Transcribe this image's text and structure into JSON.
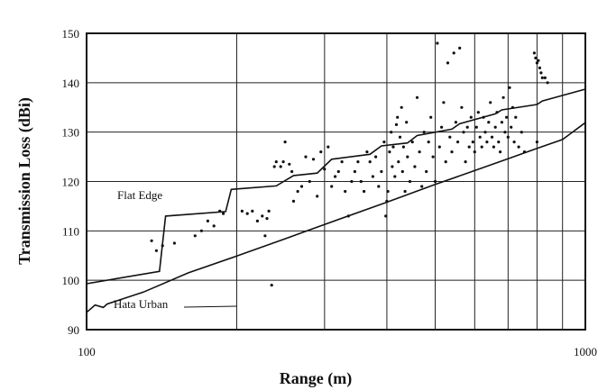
{
  "chart_data": {
    "type": "scatter",
    "title": "",
    "xlabel": "Range (m)",
    "ylabel": "Transmission Loss (dBi)",
    "x_scale": "log",
    "xlim": [
      100,
      1000
    ],
    "ylim": [
      90,
      150
    ],
    "x_ticks": [
      100,
      1000
    ],
    "y_ticks": [
      90,
      100,
      110,
      120,
      130,
      140,
      150
    ],
    "grid": true,
    "annotations": [
      {
        "text": "Flat Edge",
        "series": "flat_edge"
      },
      {
        "text": "Hata Urban",
        "series": "hata_urban"
      }
    ],
    "series": [
      {
        "id": "flat_edge",
        "kind": "line",
        "x": [
          100,
          140,
          144,
          190,
          195,
          240,
          260,
          290,
          310,
          370,
          390,
          440,
          460,
          540,
          560,
          660,
          680,
          800,
          820,
          1000
        ],
        "y": [
          99.3,
          101.8,
          113,
          113.9,
          118.4,
          119.1,
          121.2,
          121.7,
          124.5,
          125.5,
          127.2,
          127.8,
          129.3,
          130.6,
          131.7,
          133.7,
          134.5,
          135.6,
          136.3,
          138.7
        ]
      },
      {
        "id": "hata_urban",
        "kind": "line",
        "x": [
          100,
          104,
          108,
          110,
          130,
          160,
          200,
          250,
          300,
          400,
          500,
          600,
          700,
          800,
          900,
          1000
        ],
        "y": [
          93.5,
          95,
          94.5,
          95.2,
          97.6,
          101.5,
          104.9,
          108.4,
          111.3,
          115.8,
          119.4,
          122.2,
          124.6,
          126.7,
          128.5,
          131.9
        ]
      },
      {
        "id": "measured",
        "kind": "scatter",
        "points": [
          [
            135,
            108
          ],
          [
            138,
            106
          ],
          [
            142,
            107
          ],
          [
            150,
            107.5
          ],
          [
            165,
            109
          ],
          [
            170,
            110
          ],
          [
            175,
            112
          ],
          [
            180,
            111
          ],
          [
            185,
            114
          ],
          [
            188,
            113.5
          ],
          [
            205,
            114
          ],
          [
            210,
            113.5
          ],
          [
            215,
            114
          ],
          [
            220,
            112
          ],
          [
            225,
            113
          ],
          [
            230,
            112.5
          ],
          [
            232,
            114
          ],
          [
            228,
            109
          ],
          [
            235,
            99
          ],
          [
            238,
            123
          ],
          [
            240,
            124
          ],
          [
            245,
            123
          ],
          [
            248,
            124
          ],
          [
            250,
            128
          ],
          [
            255,
            123.5
          ],
          [
            258,
            122
          ],
          [
            260,
            116
          ],
          [
            265,
            118
          ],
          [
            270,
            119
          ],
          [
            275,
            125
          ],
          [
            280,
            120
          ],
          [
            285,
            124.5
          ],
          [
            290,
            117
          ],
          [
            295,
            126
          ],
          [
            300,
            122.5
          ],
          [
            305,
            127
          ],
          [
            310,
            119
          ],
          [
            315,
            121
          ],
          [
            320,
            122
          ],
          [
            325,
            124
          ],
          [
            330,
            118
          ],
          [
            335,
            113
          ],
          [
            340,
            120
          ],
          [
            345,
            122
          ],
          [
            350,
            124
          ],
          [
            355,
            120
          ],
          [
            360,
            118
          ],
          [
            365,
            126
          ],
          [
            370,
            124
          ],
          [
            375,
            121
          ],
          [
            380,
            125
          ],
          [
            385,
            119
          ],
          [
            390,
            122
          ],
          [
            395,
            128
          ],
          [
            398,
            113
          ],
          [
            400,
            116
          ],
          [
            402,
            118
          ],
          [
            405,
            126
          ],
          [
            408,
            130
          ],
          [
            410,
            123
          ],
          [
            412,
            127
          ],
          [
            415,
            121
          ],
          [
            418,
            131.5
          ],
          [
            420,
            133
          ],
          [
            422,
            124
          ],
          [
            425,
            129
          ],
          [
            428,
            135
          ],
          [
            430,
            122
          ],
          [
            432,
            127
          ],
          [
            435,
            118
          ],
          [
            438,
            132
          ],
          [
            440,
            125
          ],
          [
            445,
            120
          ],
          [
            450,
            128
          ],
          [
            455,
            123
          ],
          [
            460,
            137
          ],
          [
            465,
            126
          ],
          [
            470,
            119
          ],
          [
            475,
            130
          ],
          [
            480,
            122
          ],
          [
            485,
            128
          ],
          [
            490,
            133
          ],
          [
            495,
            125
          ],
          [
            500,
            120
          ],
          [
            505,
            148
          ],
          [
            510,
            127
          ],
          [
            515,
            131
          ],
          [
            520,
            136
          ],
          [
            525,
            124
          ],
          [
            530,
            144
          ],
          [
            535,
            129
          ],
          [
            540,
            126
          ],
          [
            545,
            146
          ],
          [
            550,
            132
          ],
          [
            555,
            128
          ],
          [
            560,
            147
          ],
          [
            565,
            135
          ],
          [
            570,
            130
          ],
          [
            575,
            124
          ],
          [
            580,
            131
          ],
          [
            585,
            127
          ],
          [
            590,
            133
          ],
          [
            595,
            128
          ],
          [
            600,
            126
          ],
          [
            605,
            131
          ],
          [
            610,
            134
          ],
          [
            615,
            129
          ],
          [
            620,
            127
          ],
          [
            625,
            133
          ],
          [
            630,
            130
          ],
          [
            635,
            128
          ],
          [
            640,
            132
          ],
          [
            645,
            136
          ],
          [
            650,
            129
          ],
          [
            655,
            127
          ],
          [
            660,
            131
          ],
          [
            665,
            134
          ],
          [
            670,
            128
          ],
          [
            675,
            126
          ],
          [
            680,
            132
          ],
          [
            685,
            137
          ],
          [
            690,
            130
          ],
          [
            695,
            133
          ],
          [
            700,
            129
          ],
          [
            705,
            139
          ],
          [
            710,
            131
          ],
          [
            715,
            135
          ],
          [
            720,
            128
          ],
          [
            725,
            133
          ],
          [
            735,
            127
          ],
          [
            745,
            130
          ],
          [
            755,
            126
          ],
          [
            790,
            146
          ],
          [
            795,
            145
          ],
          [
            800,
            144
          ],
          [
            805,
            144.5
          ],
          [
            810,
            143
          ],
          [
            815,
            142
          ],
          [
            820,
            141
          ],
          [
            830,
            141
          ],
          [
            840,
            140
          ],
          [
            800,
            128
          ]
        ]
      }
    ]
  }
}
